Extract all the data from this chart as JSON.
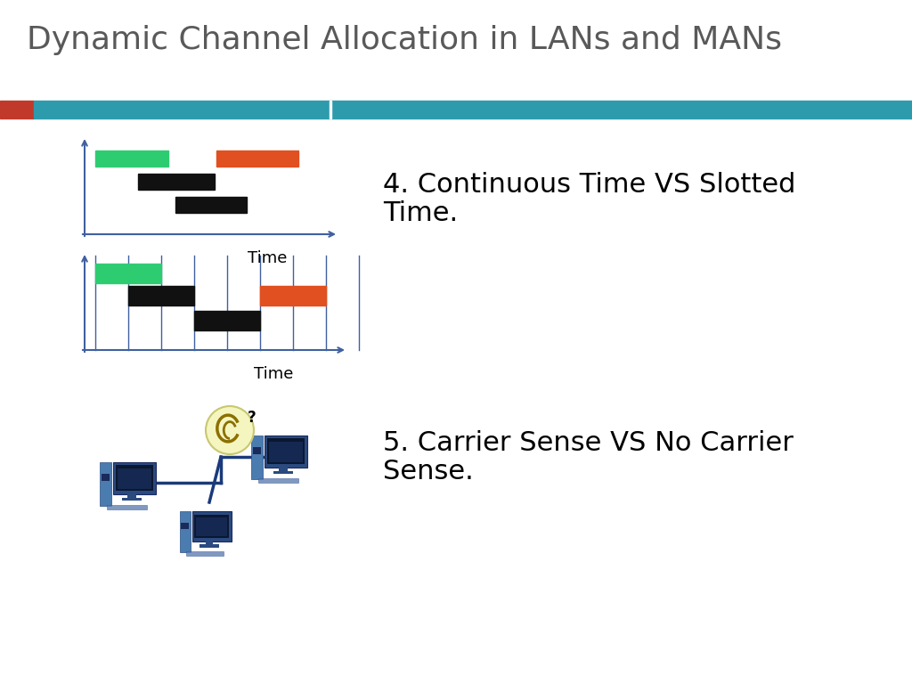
{
  "title": "Dynamic Channel Allocation in LANs and MANs",
  "title_color": "#595959",
  "title_fontsize": 26,
  "bg_color": "#ffffff",
  "header_bar_color": "#2E9BAD",
  "header_red_color": "#C0392B",
  "text4_line1": "4. Continuous Time VS Slotted",
  "text4_line2": "Time.",
  "text5_line1": "5. Carrier Sense VS No Carrier",
  "text5_line2": "Sense.",
  "text_fontsize": 22,
  "time_label": "Time",
  "green_color": "#2ECC71",
  "red_color": "#E05020",
  "black_color": "#111111",
  "axis_color": "#4060a0",
  "slot_line_color": "#4060a0",
  "net_color": "#1a3a7a",
  "ear_bg": "#f5f5c0",
  "ear_border": "#c8c870"
}
